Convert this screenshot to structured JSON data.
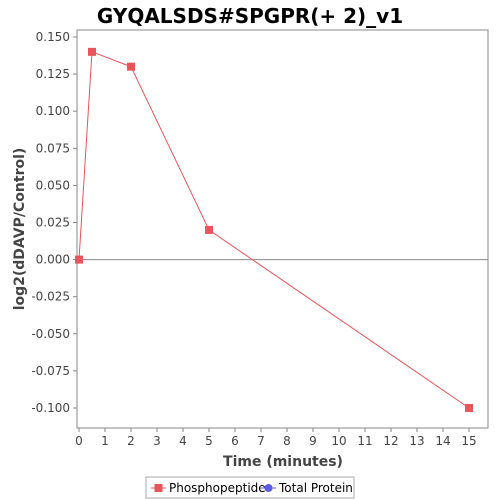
{
  "chart_data": {
    "type": "line",
    "title": "GYQALSDS#SPGPR(+ 2)_v1",
    "xlabel": "Time (minutes)",
    "ylabel": "log2(dDAVP/Control)",
    "xlim": [
      0,
      15.5
    ],
    "ylim": [
      -0.11,
      0.15
    ],
    "x_ticks": [
      "0",
      "1",
      "2",
      "3",
      "4",
      "5",
      "6",
      "7",
      "8",
      "9",
      "10",
      "11",
      "12",
      "13",
      "14",
      "15"
    ],
    "y_ticks": [
      "0.150",
      "0.125",
      "0.100",
      "0.075",
      "0.050",
      "0.025",
      "0.000",
      "-0.025",
      "-0.050",
      "-0.075",
      "-0.100"
    ],
    "grid": false,
    "zero_line": true,
    "legend_position": "bottom",
    "series": [
      {
        "name": "Phosphopeptide",
        "color": "#e8555a",
        "marker": "square",
        "x": [
          0,
          0.5,
          2,
          5,
          15
        ],
        "y": [
          0.0,
          0.14,
          0.13,
          0.02,
          -0.1
        ]
      },
      {
        "name": "Total Protein",
        "color": "#5a5ae8",
        "marker": "circle",
        "x": [],
        "y": []
      }
    ]
  }
}
